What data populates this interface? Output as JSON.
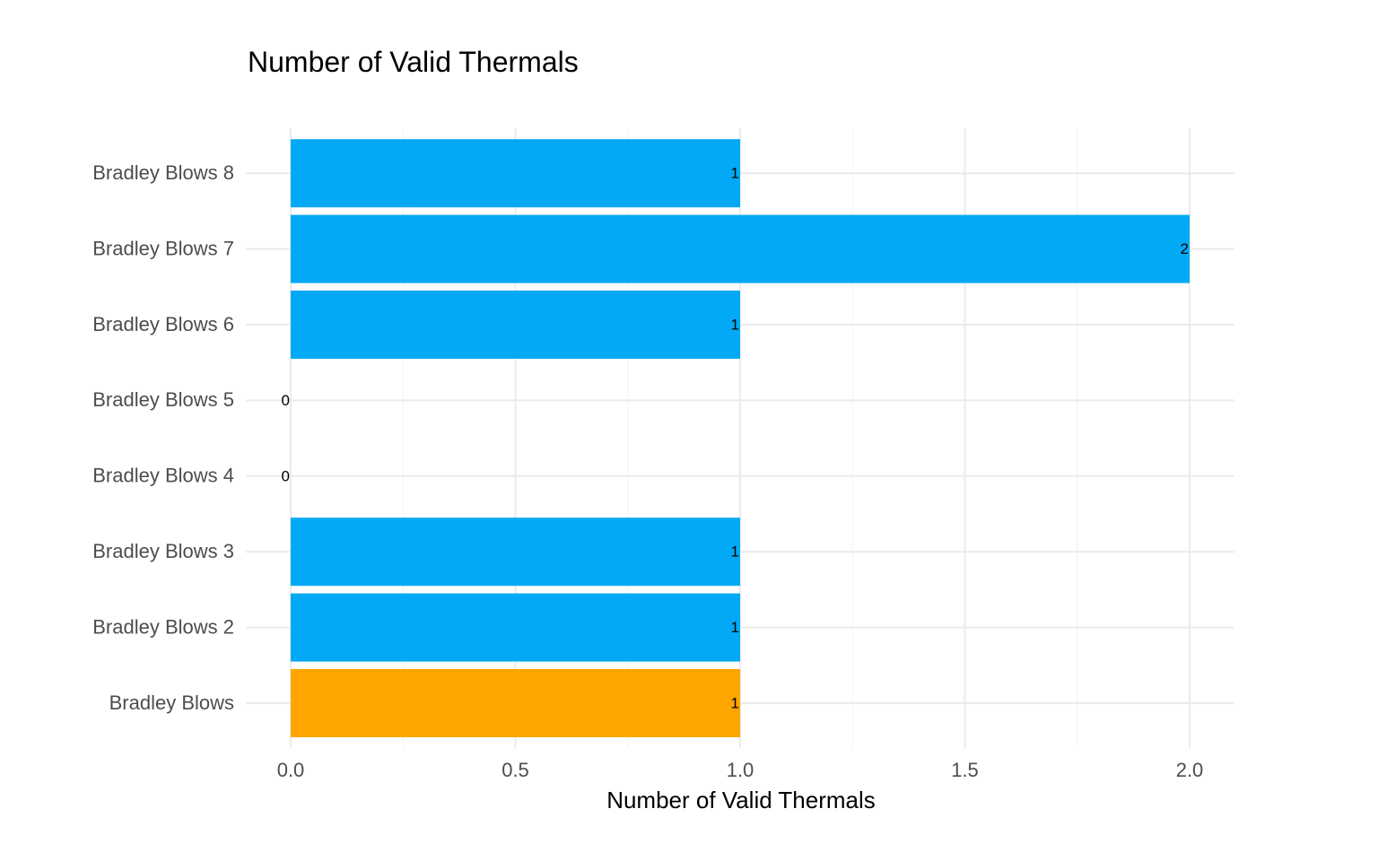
{
  "chart_data": {
    "type": "bar",
    "orientation": "horizontal",
    "title": "Number of Valid Thermals",
    "xlabel": "Number of Valid Thermals",
    "ylabel": "",
    "xlim": [
      0,
      2.1
    ],
    "x_ticks": [
      "0.0",
      "0.5",
      "1.0",
      "1.5",
      "2.0"
    ],
    "grid": true,
    "legend": "none",
    "categories": [
      "Bradley Blows",
      "Bradley Blows 2",
      "Bradley Blows 3",
      "Bradley Blows 4",
      "Bradley Blows 5",
      "Bradley Blows 6",
      "Bradley Blows 7",
      "Bradley Blows 8"
    ],
    "values": [
      1,
      1,
      1,
      0,
      0,
      1,
      2,
      1
    ],
    "labels": [
      "1",
      "1",
      "1",
      "0",
      "0",
      "1",
      "2",
      "1"
    ],
    "colors": [
      "#FFA500",
      "#03A9F4",
      "#03A9F4",
      "#03A9F4",
      "#03A9F4",
      "#03A9F4",
      "#03A9F4",
      "#03A9F4"
    ]
  }
}
